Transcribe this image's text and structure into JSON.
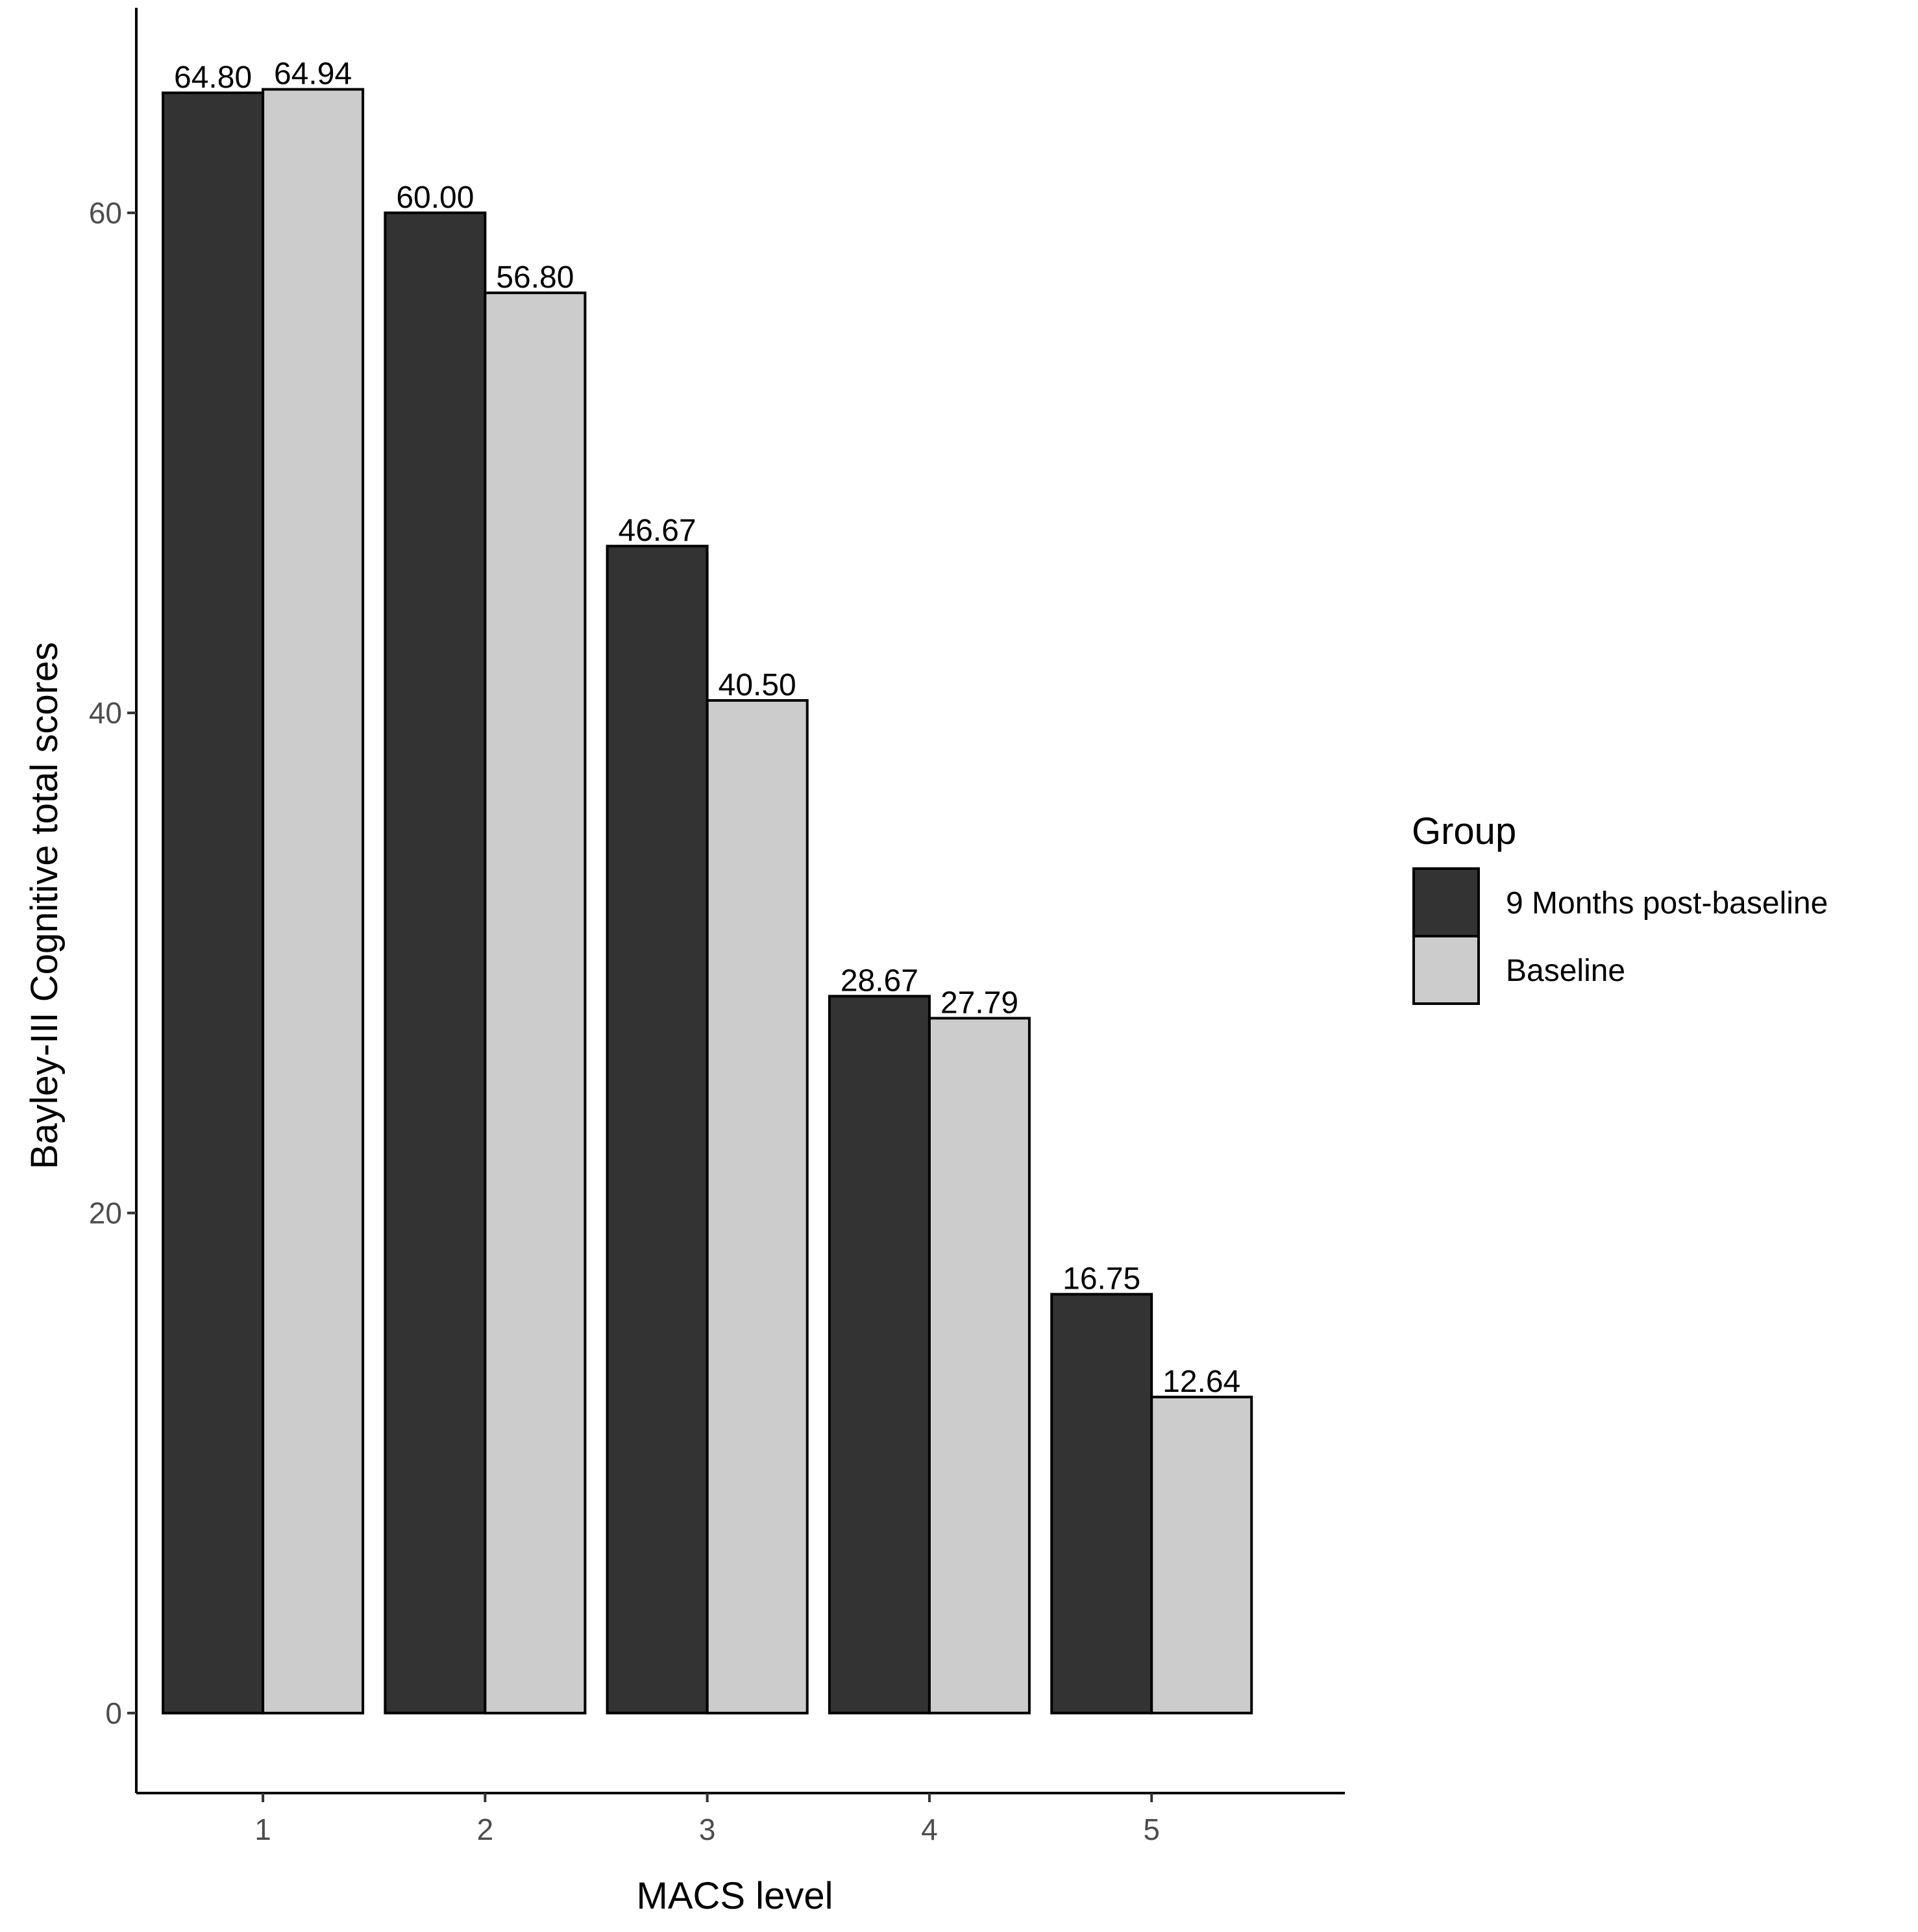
{
  "chart_data": {
    "type": "bar",
    "title": "",
    "xlabel": "MACS level",
    "ylabel": "Bayley-III Cognitive total scores",
    "categories": [
      "1",
      "2",
      "3",
      "4",
      "5"
    ],
    "series": [
      {
        "name": "9 Months post-baseline",
        "color": "#333333",
        "values": [
          64.8,
          60.0,
          46.67,
          28.67,
          16.75
        ],
        "labels": [
          "64.80",
          "60.00",
          "46.67",
          "28.67",
          "16.75"
        ]
      },
      {
        "name": "Baseline",
        "color": "#cccccc",
        "values": [
          64.94,
          56.8,
          40.5,
          27.79,
          12.64
        ],
        "labels": [
          "64.94",
          "56.80",
          "40.50",
          "27.79",
          "12.64"
        ]
      }
    ],
    "yticks": [
      0,
      20,
      40,
      60
    ],
    "ylim": [
      -3.2,
      68.2
    ],
    "grid": false,
    "legend": {
      "title": "Group",
      "position": "right"
    }
  }
}
